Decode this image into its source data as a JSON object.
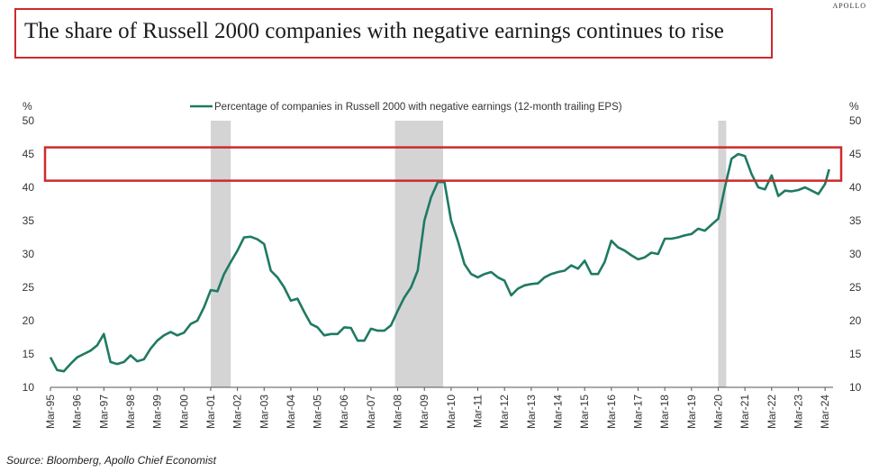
{
  "header": {
    "brand": "APOLLO",
    "title": "The share of Russell 2000 companies with negative earnings continues to rise"
  },
  "footer": {
    "source": "Source: Bloomberg, Apollo Chief Economist"
  },
  "colors": {
    "line": "#1f7a63",
    "recession": "#d4d4d4",
    "highlight": "#cc2b2b"
  },
  "chart_data": {
    "type": "line",
    "legend": "Percentage of companies in Russell 2000 with negative earnings (12-month trailing EPS)",
    "legend_position": "top-center",
    "y_unit_left": "%",
    "y_unit_right": "%",
    "ylim": [
      10,
      50
    ],
    "yticks": [
      10,
      15,
      20,
      25,
      30,
      35,
      40,
      45,
      50
    ],
    "xlim": [
      1995.0,
      2024.3
    ],
    "xtick_labels": [
      "Mar-95",
      "Mar-96",
      "Mar-97",
      "Mar-98",
      "Mar-99",
      "Mar-00",
      "Mar-01",
      "Mar-02",
      "Mar-03",
      "Mar-04",
      "Mar-05",
      "Mar-06",
      "Mar-07",
      "Mar-08",
      "Mar-09",
      "Mar-10",
      "Mar-11",
      "Mar-12",
      "Mar-13",
      "Mar-14",
      "Mar-15",
      "Mar-16",
      "Mar-17",
      "Mar-18",
      "Mar-19",
      "Mar-20",
      "Mar-21",
      "Mar-22",
      "Mar-23",
      "Mar-24"
    ],
    "grid": false,
    "recessions": [
      [
        2001.0,
        2001.75
      ],
      [
        2007.9,
        2009.7
      ],
      [
        2020.0,
        2020.3
      ]
    ],
    "highlight_band": [
      41,
      46
    ],
    "series": [
      {
        "name": "Percentage of companies in Russell 2000 with negative earnings (12-month trailing EPS)",
        "x": [
          1995.0,
          1995.25,
          1995.5,
          1995.75,
          1996.0,
          1996.25,
          1996.5,
          1996.75,
          1997.0,
          1997.25,
          1997.5,
          1997.75,
          1998.0,
          1998.25,
          1998.5,
          1998.75,
          1999.0,
          1999.25,
          1999.5,
          1999.75,
          2000.0,
          2000.25,
          2000.5,
          2000.75,
          2001.0,
          2001.25,
          2001.5,
          2001.75,
          2002.0,
          2002.25,
          2002.5,
          2002.75,
          2003.0,
          2003.25,
          2003.5,
          2003.75,
          2004.0,
          2004.25,
          2004.5,
          2004.75,
          2005.0,
          2005.25,
          2005.5,
          2005.75,
          2006.0,
          2006.25,
          2006.5,
          2006.75,
          2007.0,
          2007.25,
          2007.5,
          2007.75,
          2008.0,
          2008.25,
          2008.5,
          2008.75,
          2009.0,
          2009.25,
          2009.5,
          2009.75,
          2010.0,
          2010.25,
          2010.5,
          2010.75,
          2011.0,
          2011.25,
          2011.5,
          2011.75,
          2012.0,
          2012.25,
          2012.5,
          2012.75,
          2013.0,
          2013.25,
          2013.5,
          2013.75,
          2014.0,
          2014.25,
          2014.5,
          2014.75,
          2015.0,
          2015.25,
          2015.5,
          2015.75,
          2016.0,
          2016.25,
          2016.5,
          2016.75,
          2017.0,
          2017.25,
          2017.5,
          2017.75,
          2018.0,
          2018.25,
          2018.5,
          2018.75,
          2019.0,
          2019.25,
          2019.5,
          2019.75,
          2020.0,
          2020.25,
          2020.5,
          2020.75,
          2021.0,
          2021.25,
          2021.5,
          2021.75,
          2022.0,
          2022.25,
          2022.5,
          2022.75,
          2023.0,
          2023.25,
          2023.5,
          2023.75,
          2024.0,
          2024.15
        ],
        "values": [
          14.5,
          12.6,
          12.4,
          13.5,
          14.5,
          15.0,
          15.5,
          16.3,
          18.0,
          13.8,
          13.5,
          13.8,
          14.8,
          13.9,
          14.2,
          15.8,
          17.0,
          17.8,
          18.3,
          17.8,
          18.2,
          19.5,
          20.0,
          22.0,
          24.6,
          24.4,
          27.0,
          28.8,
          30.5,
          32.5,
          32.6,
          32.2,
          31.5,
          27.5,
          26.5,
          25.0,
          23.0,
          23.3,
          21.3,
          19.5,
          19.0,
          17.8,
          18.0,
          18.0,
          19.0,
          18.9,
          17.0,
          17.0,
          18.8,
          18.5,
          18.5,
          19.3,
          21.5,
          23.5,
          25.0,
          27.5,
          35.0,
          38.5,
          40.8,
          40.8,
          35.0,
          32.0,
          28.5,
          27.0,
          26.5,
          27.0,
          27.3,
          26.5,
          26.0,
          23.8,
          24.8,
          25.3,
          25.5,
          25.6,
          26.5,
          27.0,
          27.3,
          27.5,
          28.3,
          27.8,
          29.0,
          27.0,
          27.0,
          28.8,
          32.0,
          31.0,
          30.5,
          29.8,
          29.2,
          29.5,
          30.2,
          30.0,
          32.3,
          32.3,
          32.5,
          32.8,
          33.0,
          33.8,
          33.5,
          34.4,
          35.3,
          40.0,
          44.3,
          45.0,
          44.7,
          42.0,
          40.0,
          39.7,
          41.8,
          38.7,
          39.5,
          39.4,
          39.6,
          40.0,
          39.5,
          39.0,
          40.5,
          42.7
        ]
      }
    ]
  }
}
